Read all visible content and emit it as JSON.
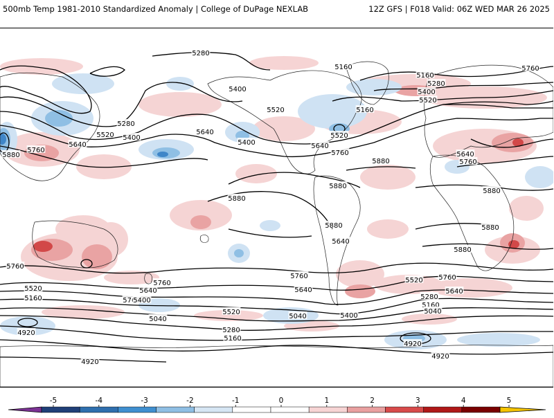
{
  "header": {
    "title": "500mb Temp 1981-2010 Standardized Anomaly | College of DuPage NEXLAB",
    "valid": "12Z GFS | F018 Valid: 06Z WED MAR 26 2025"
  },
  "contour_labels": [
    "5280",
    "5160",
    "5160",
    "5280",
    "5400",
    "5520",
    "5400",
    "5520",
    "5640",
    "5160",
    "5280",
    "5400",
    "5520",
    "5640",
    "5640",
    "5760",
    "5400",
    "5760",
    "5520",
    "5640",
    "5760",
    "5880",
    "5880",
    "5880",
    "5880",
    "5640",
    "5760",
    "5880",
    "5880",
    "5880",
    "5760",
    "5760",
    "5640",
    "5760",
    "5520",
    "5640",
    "5160",
    "5400",
    "5520",
    "5040",
    "5280",
    "5160",
    "5040",
    "4920",
    "4920",
    "4920",
    "5400",
    "5520",
    "5760",
    "5640",
    "5280",
    "5160",
    "5040",
    "4920",
    "5760",
    "5880"
  ],
  "colorbar": {
    "ticks": [
      "-5",
      "-4",
      "-3",
      "-2",
      "-1",
      "0",
      "1",
      "2",
      "3",
      "4",
      "5"
    ],
    "colors": [
      "#7b3294",
      "#1f3f78",
      "#2f6fae",
      "#3f8fd0",
      "#8fbfe4",
      "#d6e6f4",
      "#ffffff",
      "#ffffff",
      "#f7d4d4",
      "#e9a0a0",
      "#d84a4a",
      "#b01818",
      "#7a0000",
      "#f5c400"
    ]
  }
}
